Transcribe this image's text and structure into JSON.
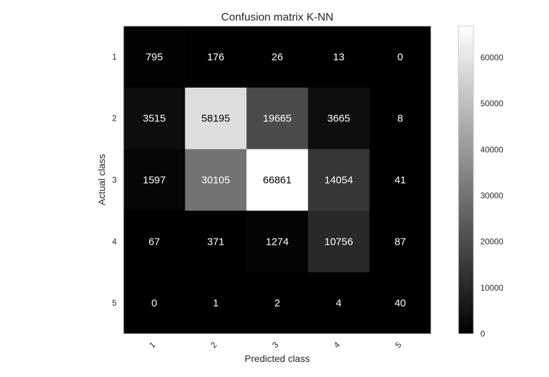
{
  "chart_data": {
    "type": "heatmap",
    "title": "Confusion matrix K-NN",
    "xlabel": "Predicted class",
    "ylabel": "Actual class",
    "x_categories": [
      "1",
      "2",
      "3",
      "4",
      "5"
    ],
    "y_categories": [
      "1",
      "2",
      "3",
      "4",
      "5"
    ],
    "values": [
      [
        795,
        176,
        26,
        13,
        0
      ],
      [
        3515,
        58195,
        19665,
        3665,
        8
      ],
      [
        1597,
        30105,
        66861,
        14054,
        41
      ],
      [
        67,
        371,
        1274,
        10756,
        87
      ],
      [
        0,
        1,
        2,
        4,
        40
      ]
    ],
    "colormap": "gray",
    "vmin": 0,
    "vmax": 66861,
    "colorbar_ticks": [
      0,
      10000,
      20000,
      30000,
      40000,
      50000,
      60000
    ],
    "grid": false,
    "x_tick_rotation": "rotated 45 degrees"
  }
}
